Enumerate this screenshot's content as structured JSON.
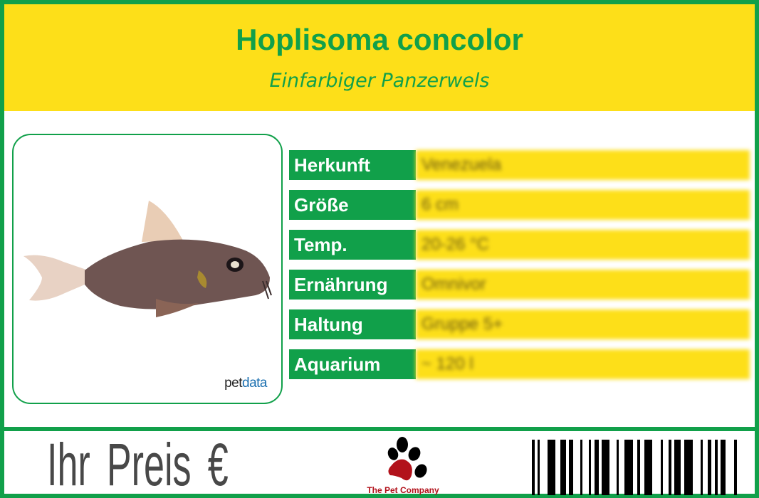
{
  "header": {
    "title": "Hoplisoma concolor",
    "subtitle": "Einfarbiger Panzerwels"
  },
  "photo": {
    "watermark_pet": "pet",
    "watermark_data": "data"
  },
  "facts": [
    {
      "label": "Herkunft",
      "value": "Venezuela"
    },
    {
      "label": "Größe",
      "value": "6 cm"
    },
    {
      "label": "Temp.",
      "value": "20-26 °C"
    },
    {
      "label": "Ernährung",
      "value": "Omnivor"
    },
    {
      "label": "Haltung",
      "value": "Gruppe 5+"
    },
    {
      "label": "Aquarium",
      "value": "~ 120 l"
    }
  ],
  "footer": {
    "price_label": "Ihr Preis €",
    "logo_text": "The Pet Company",
    "barcode_icon": "barcode"
  },
  "colors": {
    "green": "#11a04a",
    "yellow": "#fddf19",
    "logo_red": "#b2121b"
  }
}
